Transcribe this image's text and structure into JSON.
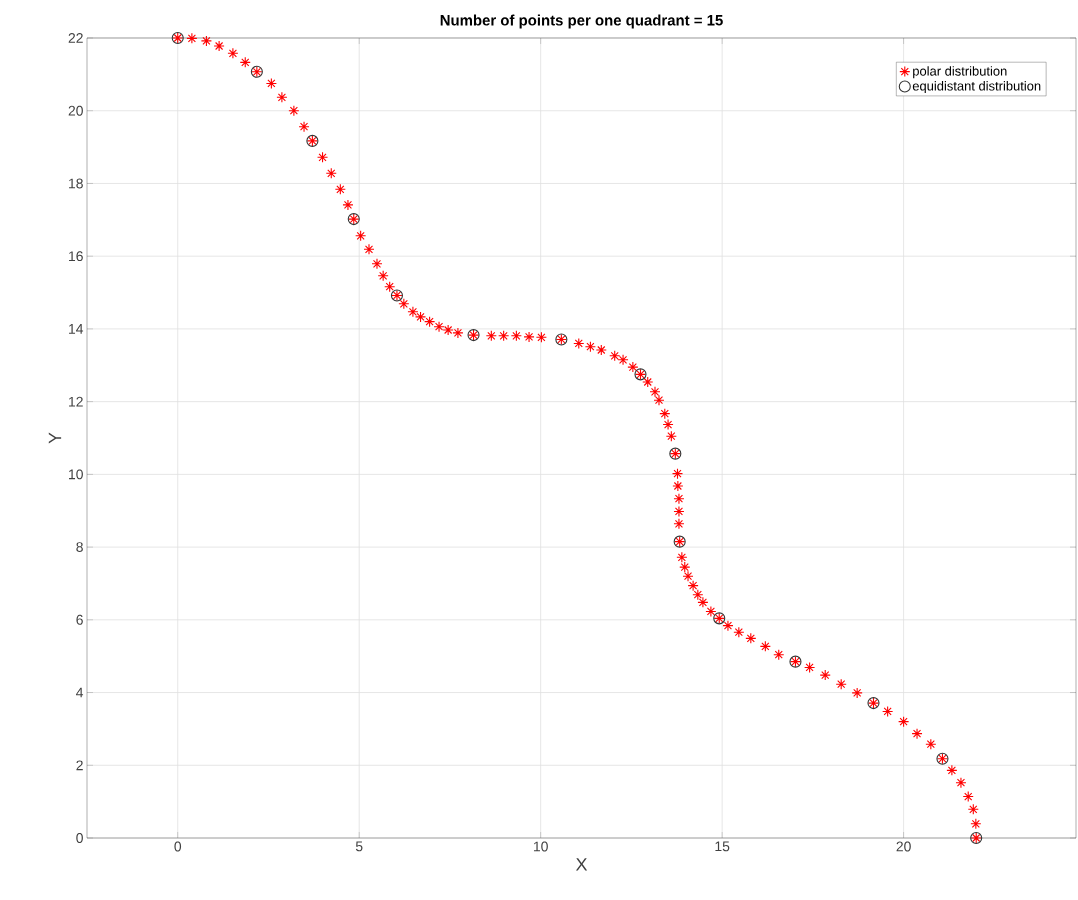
{
  "chart_data": {
    "type": "scatter",
    "title": "Number of points per one quadrant = 15",
    "xlabel": "X",
    "ylabel": "Y",
    "xlim": [
      -2.5,
      24.75
    ],
    "ylim": [
      0,
      22
    ],
    "xticks": [
      0,
      5,
      10,
      15,
      20
    ],
    "yticks": [
      0,
      2,
      4,
      6,
      8,
      10,
      12,
      14,
      16,
      18,
      20,
      22
    ],
    "grid": true,
    "legend": "top right",
    "series": [
      {
        "name": "polar distribution",
        "color": "#ff0000",
        "marker": "cross",
        "x": [
          0,
          0.39,
          0.79,
          1.14,
          1.52,
          1.86,
          2.18,
          2.58,
          2.87,
          3.2,
          3.48,
          3.71,
          3.99,
          4.23,
          4.48,
          4.69,
          4.85,
          5.04,
          5.27,
          5.49,
          5.66,
          5.84,
          6.04,
          6.23,
          6.48,
          6.69,
          6.94,
          7.2,
          7.45,
          7.72,
          8.15,
          8.64,
          8.98,
          9.33,
          9.68,
          10.02,
          10.57,
          11.05,
          11.37,
          11.67,
          12.04,
          12.27,
          12.54,
          12.75,
          12.95,
          13.15,
          13.26,
          13.42,
          13.51,
          13.6,
          13.71,
          13.77,
          13.78,
          13.81,
          13.81,
          13.81,
          13.83,
          13.89,
          13.97,
          14.06,
          14.2,
          14.33,
          14.47,
          14.69,
          14.92,
          15.16,
          15.46,
          15.79,
          16.19,
          16.56,
          17.02,
          17.41,
          17.84,
          18.28,
          18.72,
          19.17,
          19.56,
          20.0,
          20.37,
          20.75,
          21.07,
          21.33,
          21.58,
          21.78,
          21.92,
          21.99,
          22
        ],
        "values": [
          22,
          21.99,
          21.92,
          21.78,
          21.58,
          21.33,
          21.07,
          20.75,
          20.37,
          20.0,
          19.56,
          19.17,
          18.72,
          18.28,
          17.84,
          17.41,
          17.02,
          16.56,
          16.19,
          15.79,
          15.46,
          15.16,
          14.92,
          14.69,
          14.47,
          14.33,
          14.2,
          14.06,
          13.97,
          13.89,
          13.83,
          13.81,
          13.81,
          13.81,
          13.78,
          13.77,
          13.71,
          13.6,
          13.51,
          13.42,
          13.26,
          13.15,
          12.95,
          12.75,
          12.54,
          12.27,
          12.04,
          11.67,
          11.37,
          11.05,
          10.57,
          10.02,
          9.68,
          9.33,
          8.98,
          8.64,
          8.15,
          7.72,
          7.45,
          7.2,
          6.94,
          6.69,
          6.48,
          6.23,
          6.04,
          5.84,
          5.66,
          5.49,
          5.27,
          5.04,
          4.85,
          4.69,
          4.48,
          4.23,
          3.99,
          3.71,
          3.48,
          3.2,
          2.87,
          2.58,
          2.18,
          1.86,
          1.52,
          1.14,
          0.79,
          0.39,
          0
        ]
      },
      {
        "name": "equidistant distribution",
        "color": "#333333",
        "marker": "circle",
        "x": [
          0,
          2.18,
          3.71,
          4.85,
          6.04,
          8.15,
          10.57,
          12.75,
          13.71,
          13.83,
          14.92,
          17.02,
          19.17,
          21.07,
          22
        ],
        "values": [
          22,
          21.07,
          19.17,
          17.02,
          14.92,
          13.83,
          13.71,
          12.75,
          10.57,
          8.15,
          6.04,
          4.85,
          3.71,
          2.18,
          0
        ]
      }
    ]
  }
}
